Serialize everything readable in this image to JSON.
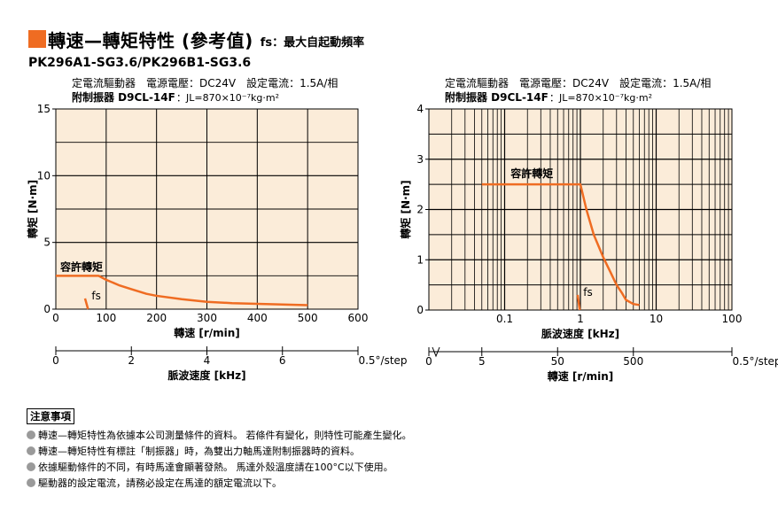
{
  "colors": {
    "accent": "#ef6c22",
    "chart_bg": "#fbecd9",
    "grid": "#000000"
  },
  "header": {
    "title": "轉速—轉矩特性 (參考值)",
    "fs_note": "fs：最大自起動頻率"
  },
  "model": "PK296A1-SG3.6/PK296B1-SG3.6",
  "chart_data": [
    {
      "type": "line",
      "info_line1": "定電流驅動器　電源電壓：DC24V　設定電流：1.5A/相",
      "info_line2_label": "附制振器 D9CL-14F",
      "info_line2_value": "：JL=870×10⁻⁷kg·m²",
      "ylabel": "轉矩 [N·m]",
      "xlabel": "轉速 [r/min]",
      "xlim": [
        0,
        600
      ],
      "ylim": [
        0,
        15
      ],
      "xticks": [
        "0",
        "100",
        "200",
        "300",
        "400",
        "500",
        "600"
      ],
      "yticks": [
        "0",
        "5",
        "10",
        "15"
      ],
      "series": [
        {
          "name": "容許轉矩",
          "x": [
            0,
            85,
            100,
            125,
            150,
            180,
            200,
            250,
            300,
            350,
            400,
            450,
            500
          ],
          "y": [
            2.5,
            2.5,
            2.2,
            1.8,
            1.5,
            1.15,
            1.0,
            0.75,
            0.55,
            0.45,
            0.4,
            0.35,
            0.3
          ]
        }
      ],
      "fs": {
        "label": "fs",
        "x": [
          58,
          64
        ],
        "y": [
          0.8,
          0.0
        ]
      },
      "secondary_axis": {
        "label": "脈波速度 [kHz]",
        "ticks": [
          "0",
          "2",
          "4",
          "6"
        ],
        "unit_tick": "0.5°/step"
      }
    },
    {
      "type": "line",
      "x_scale": "log",
      "info_line1": "定電流驅動器　電源電壓：DC24V　設定電流：1.5A/相",
      "info_line2_label": "附制振器 D9CL-14F",
      "info_line2_value": "：JL=870×10⁻⁷kg·m²",
      "ylabel": "轉矩 [N·m]",
      "xlabel": "脈波速度 [kHz]",
      "xlim": [
        0.01,
        100
      ],
      "ylim": [
        0,
        4
      ],
      "xticks": [
        "0.1",
        "1",
        "10",
        "100"
      ],
      "yticks": [
        "0",
        "1",
        "2",
        "3",
        "4"
      ],
      "series": [
        {
          "name": "容許轉矩",
          "x": [
            0.05,
            0.1,
            0.5,
            1.0,
            1.2,
            1.5,
            2.0,
            2.5,
            3.0,
            3.5,
            4.0,
            5.0,
            6.0
          ],
          "y": [
            2.5,
            2.5,
            2.5,
            2.5,
            2.0,
            1.5,
            1.05,
            0.75,
            0.5,
            0.35,
            0.2,
            0.12,
            0.1
          ]
        }
      ],
      "fs": {
        "label": "fs",
        "x": [
          0.92,
          0.98
        ],
        "y": [
          0.3,
          0.0
        ]
      },
      "secondary_axis": {
        "label": "轉速 [r/min]",
        "ticks": [
          "0",
          "5",
          "50",
          "500"
        ],
        "unit_tick": "0.5°/step"
      }
    }
  ],
  "notes": {
    "heading": "注意事項",
    "items": [
      "轉速—轉矩特性為依據本公司測量條件的資料。 若條件有變化，則特性可能產生變化。",
      "轉速—轉矩特性有標註「制振器」時，為雙出力軸馬達附制振器時的資料。",
      "依據驅動條件的不同，有時馬達會顯著發熱。 馬達外殼溫度請在100°C以下使用。",
      "驅動器的設定電流，請務必設定在馬達的額定電流以下。"
    ]
  }
}
